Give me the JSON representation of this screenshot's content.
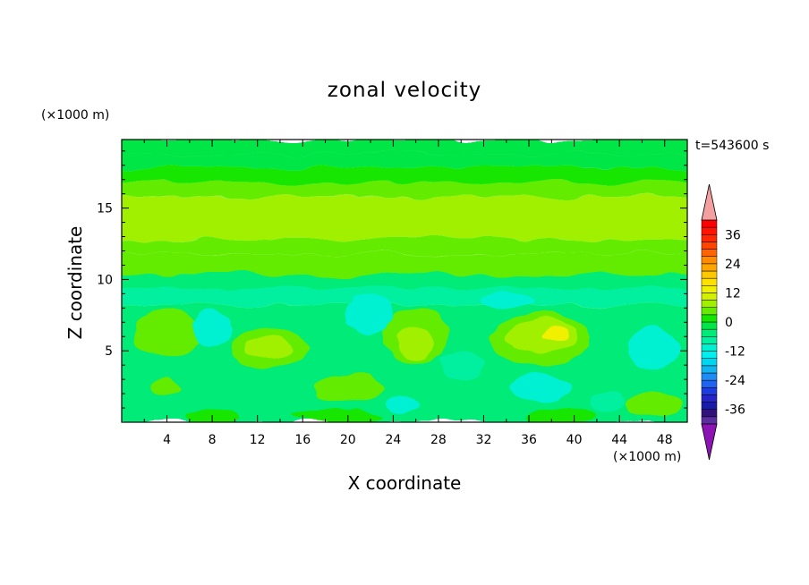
{
  "chart_data": {
    "type": "heatmap",
    "title": "zonal velocity",
    "time_label": "t=543600 s",
    "xlabel": "X coordinate",
    "ylabel": "Z coordinate",
    "x_scale_label": "(×1000 m)",
    "y_scale_label": "(×1000 m)",
    "xlim": [
      0,
      50
    ],
    "ylim": [
      0,
      19.8
    ],
    "x_ticks": [
      4,
      8,
      12,
      16,
      20,
      24,
      28,
      32,
      36,
      40,
      44,
      48
    ],
    "y_ticks": [
      5,
      10,
      15
    ],
    "colorbar": {
      "levels": [
        -42,
        -39,
        -36,
        -33,
        -30,
        -27,
        -24,
        -21,
        -18,
        -15,
        -12,
        -9,
        -6,
        -3,
        0,
        3,
        6,
        9,
        12,
        15,
        18,
        21,
        24,
        27,
        30,
        33,
        36,
        39,
        42
      ],
      "colors": [
        "#5a2ea0",
        "#30127a",
        "#1a1aa8",
        "#2424c8",
        "#1c3ce0",
        "#1f64f0",
        "#1e8cf5",
        "#12b4f0",
        "#00d6f0",
        "#00f0f0",
        "#00f0d2",
        "#00f0a0",
        "#00eb78",
        "#00e646",
        "#14e600",
        "#64eb00",
        "#a0f000",
        "#d2f000",
        "#f0f000",
        "#ffe100",
        "#ffc800",
        "#ffa500",
        "#ff8c00",
        "#ff6400",
        "#ff4600",
        "#ff2800",
        "#ff1400",
        "#ff0000"
      ],
      "over_color": "#f5a0a0",
      "under_color": "#8c14b4",
      "tick_labels": [
        "-36",
        "-24",
        "-12",
        "0",
        "12",
        "24",
        "36"
      ],
      "tick_values": [
        -36,
        -24,
        -12,
        0,
        12,
        24,
        36
      ]
    },
    "field_bands": [
      {
        "z": [
          18.8,
          19.8
        ],
        "u": -3
      },
      {
        "z": [
          17.8,
          18.8
        ],
        "u": -3
      },
      {
        "z": [
          16.8,
          17.8
        ],
        "u": 1
      },
      {
        "z": [
          15.8,
          16.8
        ],
        "u": 3
      },
      {
        "z": [
          12.8,
          15.8
        ],
        "u": 7
      },
      {
        "z": [
          11.8,
          12.8
        ],
        "u": 5
      },
      {
        "z": [
          10.4,
          11.8
        ],
        "u": 3
      },
      {
        "z": [
          9.4,
          10.4
        ],
        "u": -4
      },
      {
        "z": [
          8.2,
          9.4
        ],
        "u": -7
      },
      {
        "z": [
          0,
          8.2
        ],
        "u": -4
      }
    ],
    "field_blobs": [
      {
        "x": 4,
        "z": 6.2,
        "rx": 3,
        "rz": 1.6,
        "u": 3
      },
      {
        "x": 13,
        "z": 5.2,
        "rx": 3.4,
        "rz": 1.4,
        "u": 3
      },
      {
        "x": 13,
        "z": 5.3,
        "rx": 2,
        "rz": 0.8,
        "u": 7
      },
      {
        "x": 20,
        "z": 2.5,
        "rx": 3,
        "rz": 1.0,
        "u": 3
      },
      {
        "x": 26,
        "z": 6.0,
        "rx": 2.8,
        "rz": 2.0,
        "u": 3
      },
      {
        "x": 26,
        "z": 5.5,
        "rx": 1.6,
        "rz": 1.2,
        "u": 7
      },
      {
        "x": 37,
        "z": 5.8,
        "rx": 4.5,
        "rz": 1.8,
        "u": 3
      },
      {
        "x": 37,
        "z": 6.0,
        "rx": 3.2,
        "rz": 1.2,
        "u": 7
      },
      {
        "x": 38.2,
        "z": 6.1,
        "rx": 1.2,
        "rz": 0.5,
        "u": 12
      },
      {
        "x": 47,
        "z": 1.2,
        "rx": 2.5,
        "rz": 0.9,
        "u": 3
      },
      {
        "x": 19,
        "z": 0.4,
        "rx": 4,
        "rz": 0.5,
        "u": 1
      },
      {
        "x": 8,
        "z": 0.4,
        "rx": 2.5,
        "rz": 0.5,
        "u": 1
      },
      {
        "x": 39,
        "z": 0.5,
        "rx": 3,
        "rz": 0.5,
        "u": 1
      },
      {
        "x": 22,
        "z": 7.5,
        "rx": 2.2,
        "rz": 1.4,
        "u": -10
      },
      {
        "x": 8,
        "z": 6.5,
        "rx": 1.8,
        "rz": 1.2,
        "u": -10
      },
      {
        "x": 47,
        "z": 5.2,
        "rx": 2.2,
        "rz": 1.5,
        "u": -10
      },
      {
        "x": 37,
        "z": 2.4,
        "rx": 2.5,
        "rz": 1.0,
        "u": -10
      },
      {
        "x": 25,
        "z": 1.2,
        "rx": 1.5,
        "rz": 0.6,
        "u": -10
      },
      {
        "x": 30,
        "z": 4.0,
        "rx": 2.0,
        "rz": 1.0,
        "u": -7
      },
      {
        "x": 4,
        "z": 2.5,
        "rx": 1.2,
        "rz": 0.7,
        "u": 3
      },
      {
        "x": 43,
        "z": 1.5,
        "rx": 1.5,
        "rz": 0.8,
        "u": -7
      },
      {
        "x": 34,
        "z": 8.5,
        "rx": 2.5,
        "rz": 0.5,
        "u": -10
      }
    ]
  }
}
